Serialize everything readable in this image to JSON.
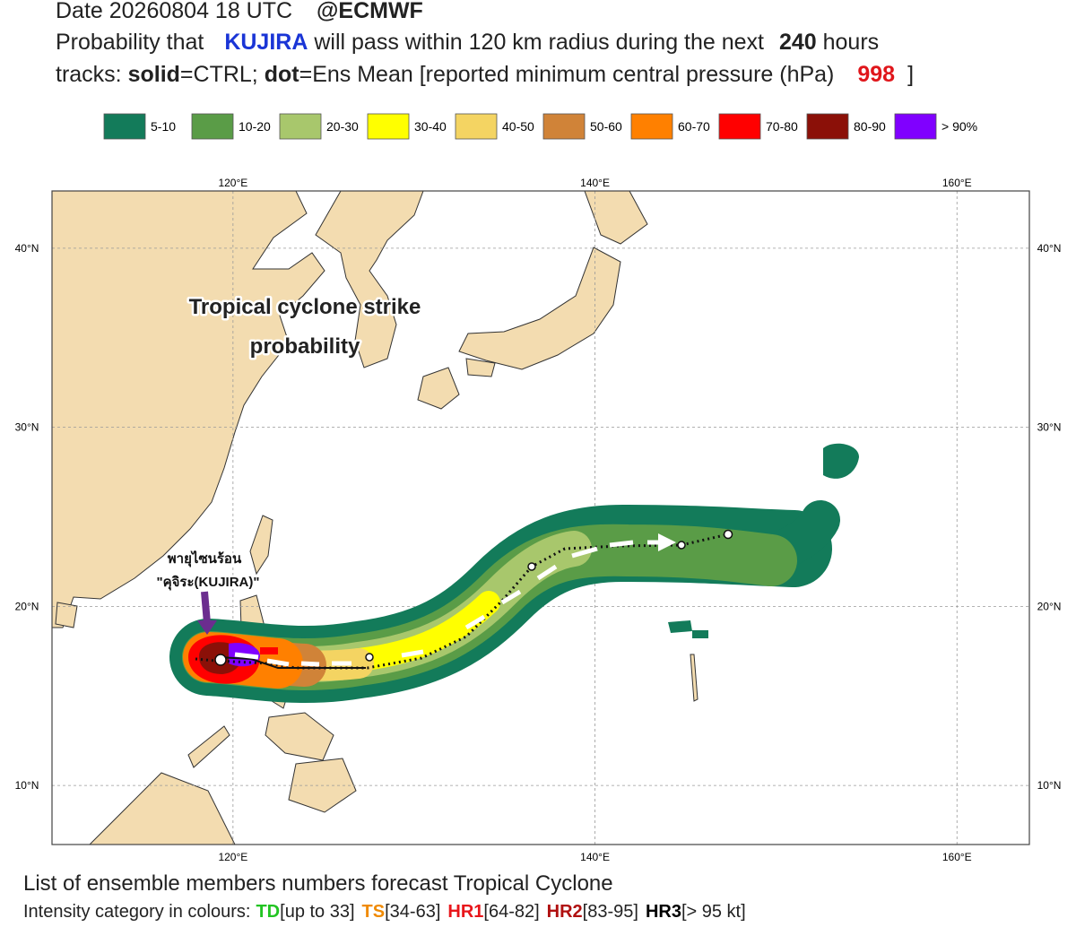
{
  "header": {
    "date_line": "Date 20260804 18 UTC",
    "source": "@ECMWF",
    "line2": {
      "prefix": "Probability that",
      "storm": "KUJIRA",
      "middle": "will pass within 120 km radius during the next",
      "hours": "240",
      "suffix": "hours"
    },
    "line3": {
      "prefix": "tracks:",
      "solid": "solid",
      "ctrl": "=CTRL;",
      "dot": "dot",
      "ens": "=Ens Mean [reported minimum central pressure (hPa)",
      "pressure": "998",
      "close": "]"
    }
  },
  "legend": [
    {
      "label": "5-10",
      "color": "#137b5a"
    },
    {
      "label": "10-20",
      "color": "#5a9c47"
    },
    {
      "label": "20-30",
      "color": "#a8c76c"
    },
    {
      "label": "30-40",
      "color": "#ffff00"
    },
    {
      "label": "40-50",
      "color": "#f4d462"
    },
    {
      "label": "50-60",
      "color": "#d08338"
    },
    {
      "label": "60-70",
      "color": "#ff8000"
    },
    {
      "label": "70-80",
      "color": "#ff0000"
    },
    {
      "label": "80-90",
      "color": "#8b1008"
    },
    {
      "label": "> 90%",
      "color": "#8000ff"
    }
  ],
  "map": {
    "lon_range": [
      110,
      164
    ],
    "lat_range": [
      6.7,
      43.2
    ],
    "lon_ticks": [
      {
        "value": 120,
        "label": "120°E"
      },
      {
        "value": 140,
        "label": "140°E"
      },
      {
        "value": 160,
        "label": "160°E"
      }
    ],
    "lat_ticks": [
      {
        "value": 40,
        "label": "40°N"
      },
      {
        "value": 30,
        "label": "30°N"
      },
      {
        "value": 20,
        "label": "20°N"
      },
      {
        "value": 10,
        "label": "10°N"
      }
    ],
    "overlay_title": [
      "Tropical cyclone strike",
      "probability"
    ],
    "storm_label": [
      "พายุไซนร้อน",
      "\"คุจิระ(KUJIRA)\""
    ]
  },
  "footer": {
    "line1": "List of ensemble members numbers forecast Tropical Cyclone",
    "prefix": "Intensity category in colours:",
    "categories": [
      {
        "name": "TD",
        "range": "[up to 33]"
      },
      {
        "name": "TS",
        "range": "[34-63]"
      },
      {
        "name": "HR1",
        "range": "[64-82]"
      },
      {
        "name": "HR2",
        "range": "[83-95]"
      },
      {
        "name": "HR3",
        "range": "[> 95 kt]"
      }
    ]
  }
}
